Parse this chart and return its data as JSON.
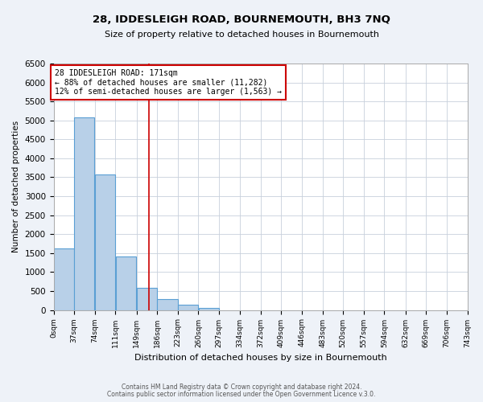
{
  "title": "28, IDDESLEIGH ROAD, BOURNEMOUTH, BH3 7NQ",
  "subtitle": "Size of property relative to detached houses in Bournemouth",
  "xlabel": "Distribution of detached houses by size in Bournemouth",
  "ylabel": "Number of detached properties",
  "bin_edges": [
    0,
    37,
    74,
    111,
    149,
    186,
    223,
    260,
    297,
    334,
    372,
    409,
    446,
    483,
    520,
    557,
    594,
    632,
    669,
    706,
    743
  ],
  "bin_counts": [
    1620,
    5080,
    3580,
    1420,
    580,
    290,
    140,
    60,
    0,
    0,
    0,
    0,
    0,
    0,
    0,
    0,
    0,
    0,
    0,
    0
  ],
  "bar_color": "#b8d0e8",
  "bar_edge_color": "#5a9fd4",
  "property_line_x": 171,
  "annotation_title": "28 IDDESLEIGH ROAD: 171sqm",
  "annotation_line1": "← 88% of detached houses are smaller (11,282)",
  "annotation_line2": "12% of semi-detached houses are larger (1,563) →",
  "annotation_box_facecolor": "#ffffff",
  "annotation_box_edgecolor": "#cc0000",
  "vline_color": "#cc0000",
  "ylim": [
    0,
    6500
  ],
  "yticks": [
    0,
    500,
    1000,
    1500,
    2000,
    2500,
    3000,
    3500,
    4000,
    4500,
    5000,
    5500,
    6000,
    6500
  ],
  "tick_labels": [
    "0sqm",
    "37sqm",
    "74sqm",
    "111sqm",
    "149sqm",
    "186sqm",
    "223sqm",
    "260sqm",
    "297sqm",
    "334sqm",
    "372sqm",
    "409sqm",
    "446sqm",
    "483sqm",
    "520sqm",
    "557sqm",
    "594sqm",
    "632sqm",
    "669sqm",
    "706sqm",
    "743sqm"
  ],
  "footer_line1": "Contains HM Land Registry data © Crown copyright and database right 2024.",
  "footer_line2": "Contains public sector information licensed under the Open Government Licence v.3.0.",
  "background_color": "#eef2f8",
  "plot_background_color": "#ffffff",
  "grid_color": "#c8d0dc"
}
